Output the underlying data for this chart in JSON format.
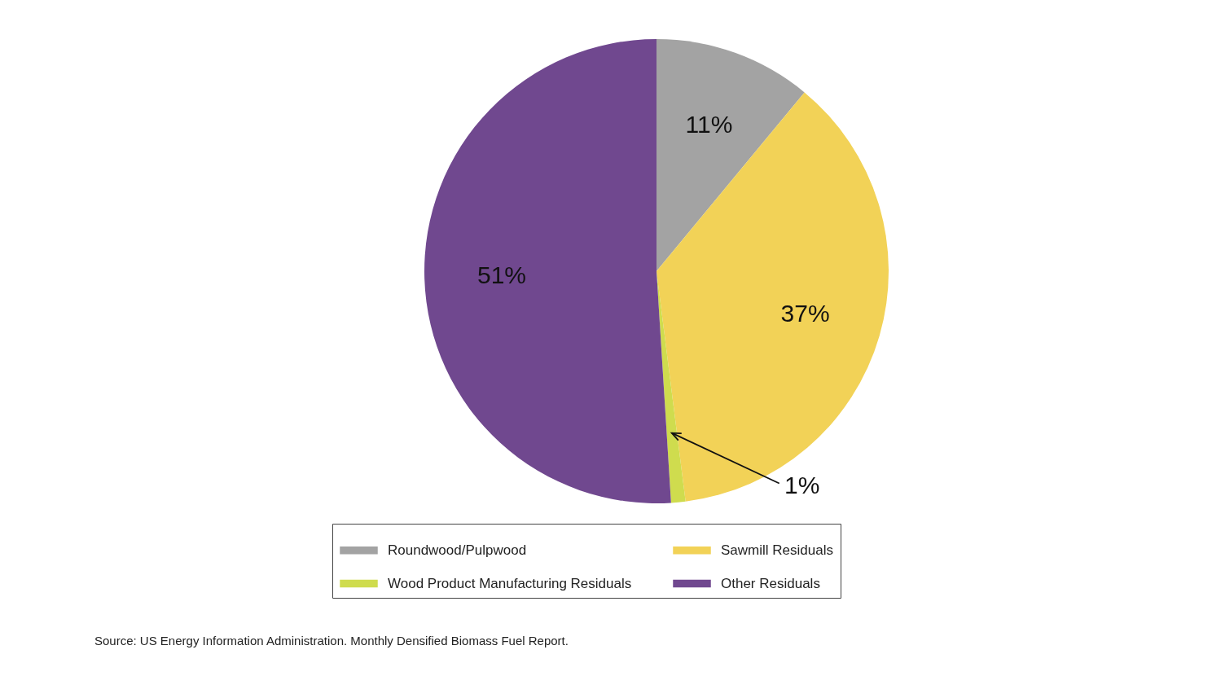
{
  "chart_data": {
    "type": "pie",
    "categories": [
      "Roundwood/Pulpwood",
      "Sawmill Residuals",
      "Wood Product Manufacturing Residuals",
      "Other Residuals"
    ],
    "values": [
      11,
      37,
      1,
      51
    ],
    "colors": [
      "#a3a3a3",
      "#f2d257",
      "#cfdc4e",
      "#70488f"
    ],
    "value_labels": [
      "11%",
      "37%",
      "1%",
      "51%"
    ],
    "legend": "bottom",
    "annotations": [
      "Source: US Energy Information Administration. Monthly Densified Biomass Fuel Report."
    ]
  }
}
